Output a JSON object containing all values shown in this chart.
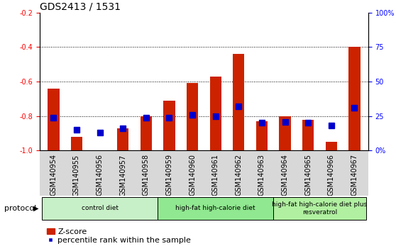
{
  "title": "GDS2413 / 1531",
  "samples": [
    "GSM140954",
    "GSM140955",
    "GSM140956",
    "GSM140957",
    "GSM140958",
    "GSM140959",
    "GSM140960",
    "GSM140961",
    "GSM140962",
    "GSM140963",
    "GSM140964",
    "GSM140965",
    "GSM140966",
    "GSM140967"
  ],
  "zscore": [
    -0.64,
    -0.92,
    -1.0,
    -0.87,
    -0.8,
    -0.71,
    -0.61,
    -0.57,
    -0.44,
    -0.83,
    -0.8,
    -0.82,
    -0.95,
    -0.4
  ],
  "percentile": [
    24,
    15,
    13,
    16,
    24,
    24,
    26,
    25,
    32,
    20,
    21,
    20,
    18,
    31
  ],
  "ylim_left": [
    -1.0,
    -0.2
  ],
  "ylim_right": [
    0,
    100
  ],
  "yticks_left": [
    -1.0,
    -0.8,
    -0.6,
    -0.4,
    -0.2
  ],
  "yticks_right": [
    0,
    25,
    50,
    75,
    100
  ],
  "ytick_labels_right": [
    "0%",
    "25",
    "50",
    "75",
    "100%"
  ],
  "groups": [
    {
      "label": "control diet",
      "start": 0,
      "end": 4,
      "color": "#c8f0c8"
    },
    {
      "label": "high-fat high-calorie diet",
      "start": 5,
      "end": 9,
      "color": "#90e890"
    },
    {
      "label": "high-fat high-calorie diet plus\nresveratrol",
      "start": 10,
      "end": 13,
      "color": "#b0f0a0"
    }
  ],
  "protocol_label": "protocol",
  "bar_color": "#cc2200",
  "percentile_color": "#0000cc",
  "bar_width": 0.5,
  "percentile_marker_size": 6,
  "grid_color": "#000000",
  "title_fontsize": 10,
  "tick_fontsize": 7,
  "label_fontsize": 8,
  "legend_fontsize": 8,
  "xlabel_bg": "#d8d8d8"
}
